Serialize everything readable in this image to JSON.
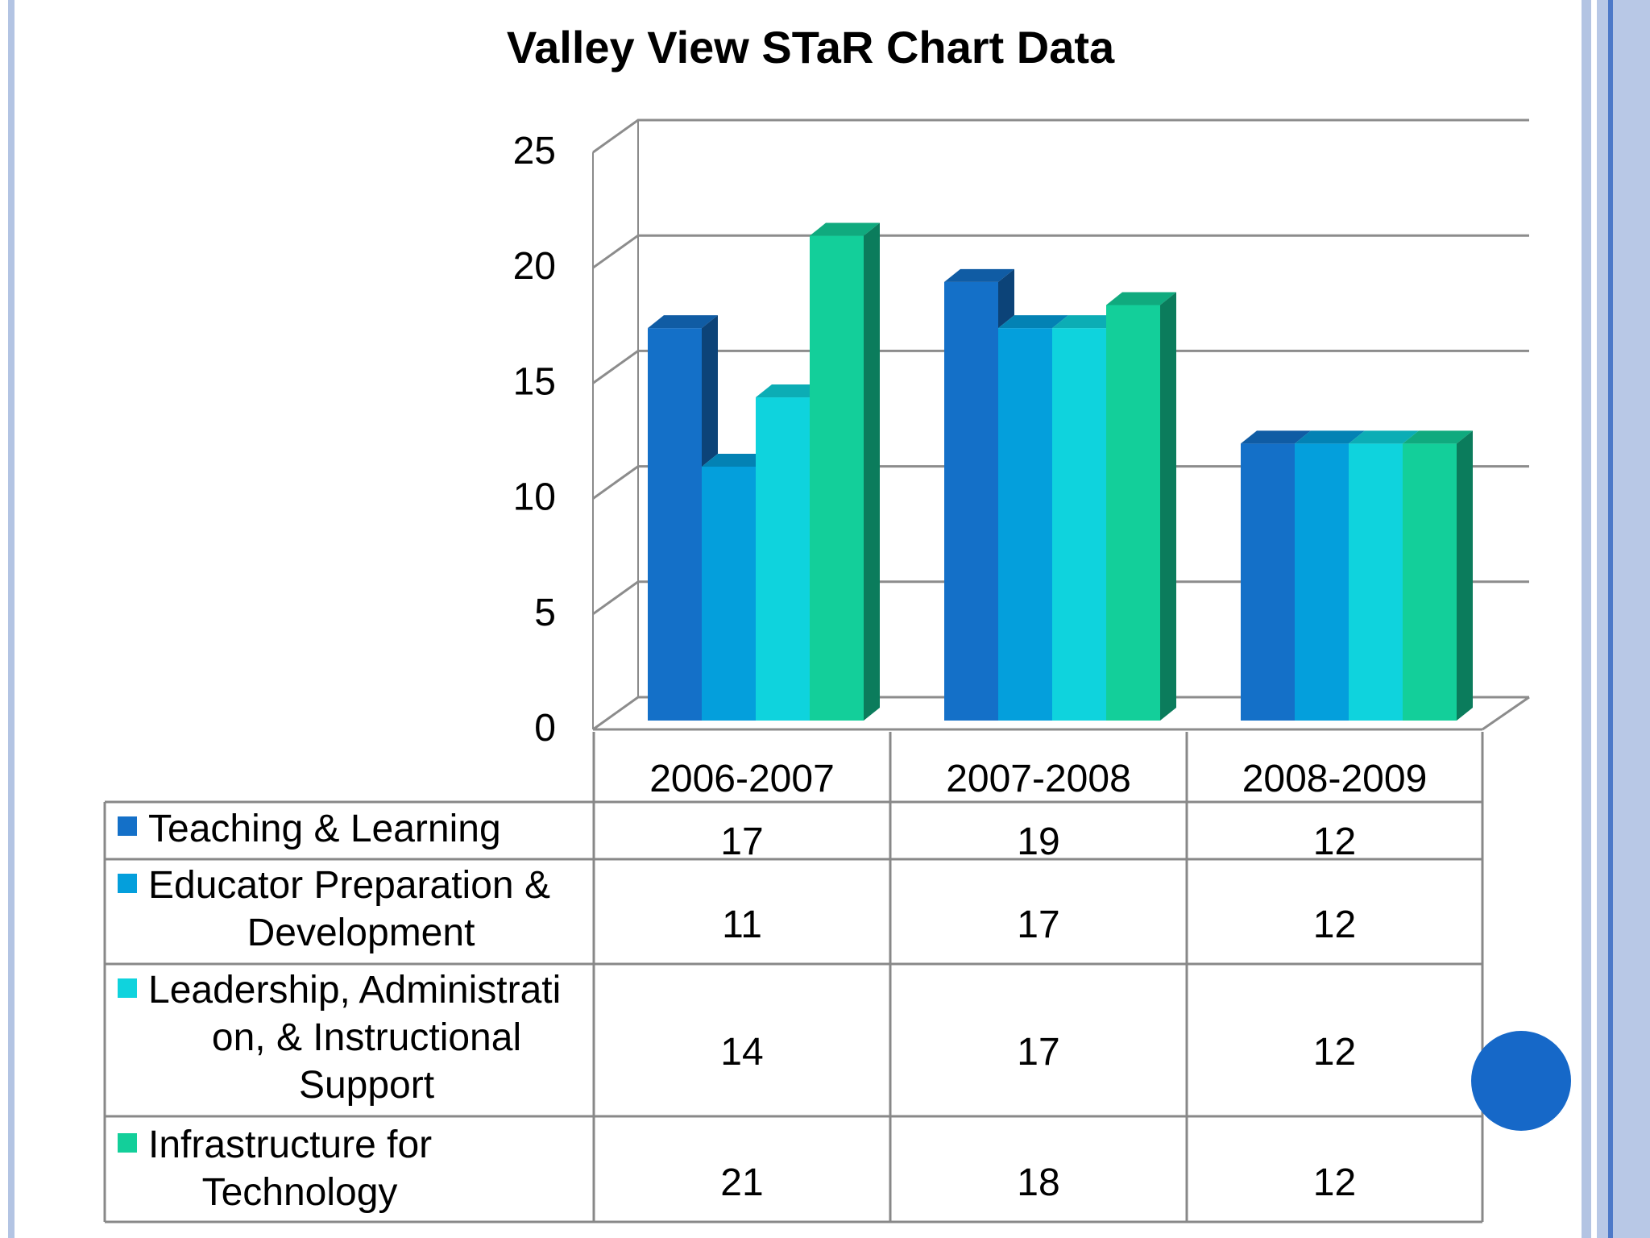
{
  "chart_data": {
    "type": "bar",
    "title": "Valley View STaR Chart Data",
    "categories": [
      "2006-2007",
      "2007-2008",
      "2008-2009"
    ],
    "series": [
      {
        "name": "Teaching & Learning",
        "values": [
          17,
          19,
          12
        ],
        "color": "#1470c8"
      },
      {
        "name": "Educator Preparation & Development",
        "values": [
          11,
          17,
          12
        ],
        "color": "#049fdc"
      },
      {
        "name": "Leadership, Administration, & Instructional Support",
        "values": [
          14,
          17,
          12
        ],
        "color": "#0fd3dd"
      },
      {
        "name": "Infrastructure for Technology",
        "values": [
          21,
          18,
          12
        ],
        "color": "#13cf9a"
      }
    ],
    "ylim": [
      0,
      25
    ],
    "yticks": [
      0,
      5,
      10,
      15,
      20,
      25
    ],
    "grid": true,
    "three_d": true,
    "legend": "data-table-below"
  },
  "colors": {
    "frame_light": "#b3c4e3",
    "frame_dark": "#4d79c8",
    "accent_dot": "#1668c8"
  }
}
